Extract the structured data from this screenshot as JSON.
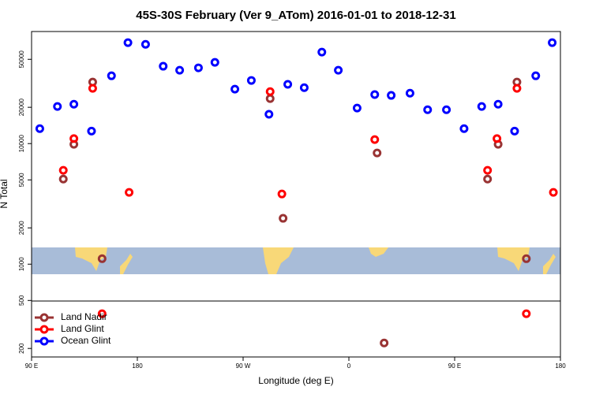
{
  "chart_data": {
    "type": "scatter",
    "title": "45S-30S February (Ver 9_ATom)   2016-01-01 to 2018-12-31",
    "x_label": "Longitude (deg E)",
    "y_label": "N Total",
    "log_y": true,
    "legend": "bottom-left",
    "xlim": [
      90,
      540
    ],
    "xticks": [
      {
        "value": 90,
        "label": "90 E"
      },
      180,
      {
        "value": 270,
        "label": "90 W"
      },
      {
        "value": 360,
        "label": "0"
      },
      {
        "value": 450,
        "label": "90 E"
      },
      {
        "value": 540,
        "label": "180"
      }
    ],
    "ylim": [
      170,
      85000
    ],
    "yticks": [
      200,
      500,
      1000,
      2000,
      5000,
      10000,
      20000,
      50000
    ],
    "series": [
      {
        "name": "Land Nadir",
        "color": "#993333",
        "x": [
          117,
          126,
          142,
          150,
          293,
          304,
          384,
          478,
          487,
          503,
          511,
          390
        ],
        "values": [
          5080,
          9860,
          32400,
          1110,
          23600,
          2400,
          8360,
          5080,
          9860,
          32400,
          1110,
          222
        ]
      },
      {
        "name": "Land Glint",
        "color": "#ff0000",
        "x": [
          117,
          126,
          142,
          150,
          173,
          293,
          303,
          382,
          478,
          486,
          503,
          511,
          534
        ],
        "values": [
          6000,
          11000,
          28700,
          388,
          3940,
          27000,
          3820,
          10800,
          6000,
          11000,
          28700,
          388,
          3940
        ]
      },
      {
        "name": "Ocean Glint",
        "color": "#0000ff",
        "x": [
          97,
          112,
          126,
          141,
          158,
          172,
          187,
          202,
          216,
          232,
          246,
          263,
          277,
          292,
          308,
          322,
          337,
          351,
          367,
          382,
          396,
          412,
          427,
          443,
          458,
          473,
          487,
          501,
          519,
          533
        ],
        "values": [
          13300,
          20300,
          21200,
          12700,
          36500,
          68700,
          66600,
          43800,
          40600,
          42500,
          47200,
          28300,
          33400,
          17500,
          31000,
          29100,
          57400,
          40600,
          19700,
          25500,
          25100,
          26200,
          19100,
          19100,
          13300,
          20300,
          21200,
          12700,
          36500,
          68700
        ]
      }
    ]
  }
}
